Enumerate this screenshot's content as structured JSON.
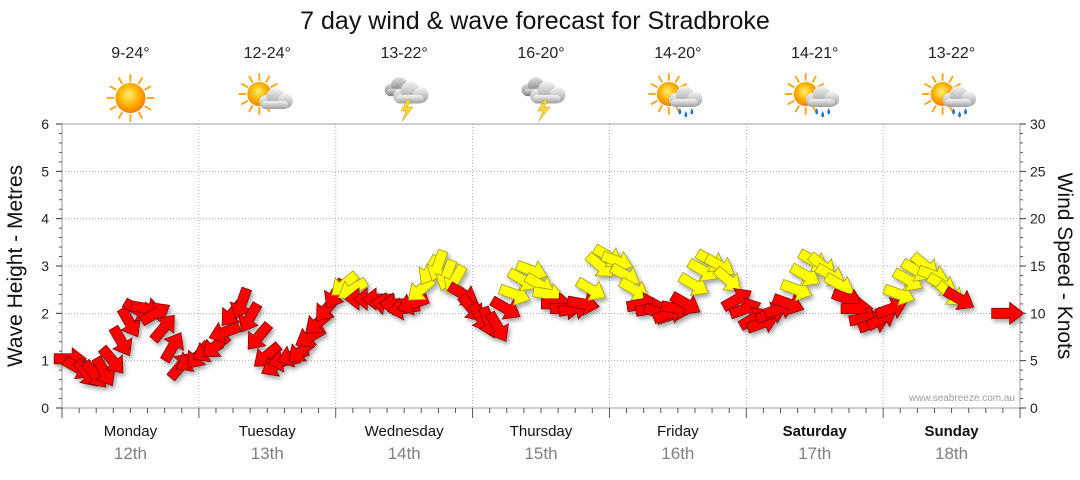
{
  "chart_data": {
    "type": "line",
    "title": "7 day wind & wave forecast for Stradbroke",
    "ylabel": "Wave Height - Metres",
    "y2label": "Wind Speed - Knots",
    "watermark": "www.seabreeze.com.au",
    "ylim": [
      0,
      6
    ],
    "y_ticks": [
      "0",
      "1",
      "2",
      "3",
      "4",
      "5",
      "6"
    ],
    "y2lim": [
      0,
      30
    ],
    "y2_ticks": [
      "0",
      "5",
      "10",
      "15",
      "20",
      "25",
      "30"
    ],
    "days": [
      {
        "name": "Monday",
        "date": "12th",
        "temp": "9-24°",
        "weather": "sunny",
        "bold": false
      },
      {
        "name": "Tuesday",
        "date": "13th",
        "temp": "12-24°",
        "weather": "partly-cloudy",
        "bold": false
      },
      {
        "name": "Wednesday",
        "date": "14th",
        "temp": "13-22°",
        "weather": "storm",
        "bold": false
      },
      {
        "name": "Thursday",
        "date": "15th",
        "temp": "16-20°",
        "weather": "storm",
        "bold": false
      },
      {
        "name": "Friday",
        "date": "16th",
        "temp": "14-20°",
        "weather": "partly-cloudy-rain",
        "bold": false
      },
      {
        "name": "Saturday",
        "date": "17th",
        "temp": "14-21°",
        "weather": "partly-cloudy-rain",
        "bold": true
      },
      {
        "name": "Sunday",
        "date": "18th",
        "temp": "13-22°",
        "weather": "partly-cloudy-rain",
        "bold": true
      }
    ],
    "wind_arrow_colors": {
      "light": "#ff0000",
      "strong": "#ffff00"
    },
    "wind_series": {
      "name": "Wind Speed",
      "unit": "knots",
      "points": [
        {
          "t": 0.0,
          "speed": 5.2,
          "dir": 270,
          "strong": false
        },
        {
          "t": 0.12,
          "speed": 4.2,
          "dir": 300,
          "strong": false
        },
        {
          "t": 0.25,
          "speed": 3.6,
          "dir": 320,
          "strong": false
        },
        {
          "t": 0.37,
          "speed": 3.5,
          "dir": 320,
          "strong": false
        },
        {
          "t": 0.5,
          "speed": 3.8,
          "dir": 330,
          "strong": false
        },
        {
          "t": 0.62,
          "speed": 5.0,
          "dir": 320,
          "strong": false
        },
        {
          "t": 0.75,
          "speed": 7.0,
          "dir": 330,
          "strong": false
        },
        {
          "t": 0.87,
          "speed": 9.0,
          "dir": 330,
          "strong": false
        },
        {
          "t": 1.0,
          "speed": 10.3,
          "dir": 300,
          "strong": false
        },
        {
          "t": 1.12,
          "speed": 10.5,
          "dir": 280,
          "strong": false
        },
        {
          "t": 1.25,
          "speed": 10.0,
          "dir": 240,
          "strong": false
        },
        {
          "t": 1.37,
          "speed": 8.5,
          "dir": 220,
          "strong": false
        },
        {
          "t": 1.5,
          "speed": 6.5,
          "dir": 210,
          "strong": false
        },
        {
          "t": 1.62,
          "speed": 4.5,
          "dir": 220,
          "strong": false
        },
        {
          "t": 1.75,
          "speed": 5.0,
          "dir": 60,
          "strong": false
        },
        {
          "t": 1.87,
          "speed": 5.5,
          "dir": 40,
          "strong": false
        },
        {
          "t": 2.0,
          "speed": 6.0,
          "dir": 60,
          "strong": false
        },
        {
          "t": 2.12,
          "speed": 6.5,
          "dir": 50,
          "strong": false
        },
        {
          "t": 2.25,
          "speed": 8.0,
          "dir": 70,
          "strong": false
        },
        {
          "t": 2.37,
          "speed": 10.0,
          "dir": 40,
          "strong": false
        },
        {
          "t": 2.5,
          "speed": 11.0,
          "dir": 20,
          "strong": false
        },
        {
          "t": 2.62,
          "speed": 9.5,
          "dir": 30,
          "strong": false
        },
        {
          "t": 2.75,
          "speed": 7.5,
          "dir": 40,
          "strong": false
        },
        {
          "t": 2.87,
          "speed": 5.5,
          "dir": 50,
          "strong": false
        },
        {
          "t": 3.0,
          "speed": 4.5,
          "dir": 60,
          "strong": false
        },
        {
          "t": 3.12,
          "speed": 5.0,
          "dir": 80,
          "strong": false
        },
        {
          "t": 3.25,
          "speed": 5.5,
          "dir": 70,
          "strong": false
        },
        {
          "t": 3.37,
          "speed": 6.0,
          "dir": 50,
          "strong": false
        },
        {
          "t": 3.5,
          "speed": 7.5,
          "dir": 60,
          "strong": false
        },
        {
          "t": 3.62,
          "speed": 9.0,
          "dir": 50,
          "strong": false
        },
        {
          "t": 3.75,
          "speed": 10.5,
          "dir": 40,
          "strong": false
        },
        {
          "t": 3.87,
          "speed": 12.0,
          "dir": 30,
          "strong": false
        },
        {
          "t": 4.0,
          "speed": 13.0,
          "dir": 50,
          "strong": true
        },
        {
          "t": 4.12,
          "speed": 12.5,
          "dir": 60,
          "strong": true
        },
        {
          "t": 4.25,
          "speed": 11.5,
          "dir": 90,
          "strong": false
        },
        {
          "t": 4.37,
          "speed": 11.5,
          "dir": 90,
          "strong": false
        },
        {
          "t": 4.5,
          "speed": 11.5,
          "dir": 90,
          "strong": false
        },
        {
          "t": 4.62,
          "speed": 11.0,
          "dir": 100,
          "strong": false
        },
        {
          "t": 4.75,
          "speed": 11.0,
          "dir": 90,
          "strong": false
        },
        {
          "t": 4.87,
          "speed": 10.5,
          "dir": 80,
          "strong": false
        },
        {
          "t": 5.0,
          "speed": 11.0,
          "dir": 70,
          "strong": false
        },
        {
          "t": 5.12,
          "speed": 12.5,
          "dir": 50,
          "strong": true
        },
        {
          "t": 5.25,
          "speed": 14.5,
          "dir": 30,
          "strong": true
        },
        {
          "t": 5.37,
          "speed": 15.0,
          "dir": 20,
          "strong": true
        },
        {
          "t": 5.5,
          "speed": 14.0,
          "dir": 20,
          "strong": true
        },
        {
          "t": 5.62,
          "speed": 13.5,
          "dir": 30,
          "strong": true
        },
        {
          "t": 5.75,
          "speed": 12.0,
          "dir": 300,
          "strong": false
        },
        {
          "t": 5.87,
          "speed": 10.5,
          "dir": 320,
          "strong": false
        },
        {
          "t": 6.0,
          "speed": 9.5,
          "dir": 330,
          "strong": false
        },
        {
          "t": 6.12,
          "speed": 9.0,
          "dir": 340,
          "strong": false
        },
        {
          "t": 6.25,
          "speed": 8.5,
          "dir": 330,
          "strong": false
        },
        {
          "t": 6.37,
          "speed": 10.5,
          "dir": 300,
          "strong": false
        },
        {
          "t": 6.5,
          "speed": 12.0,
          "dir": 290,
          "strong": true
        },
        {
          "t": 6.62,
          "speed": 13.5,
          "dir": 300,
          "strong": true
        },
        {
          "t": 6.75,
          "speed": 14.5,
          "dir": 290,
          "strong": true
        },
        {
          "t": 6.87,
          "speed": 13.0,
          "dir": 300,
          "strong": true
        },
        {
          "t": 7.0,
          "speed": 12.0,
          "dir": 280,
          "strong": true
        },
        {
          "t": 7.12,
          "speed": 11.0,
          "dir": 270,
          "strong": false
        },
        {
          "t": 7.25,
          "speed": 10.5,
          "dir": 270,
          "strong": false
        },
        {
          "t": 7.37,
          "speed": 10.5,
          "dir": 260,
          "strong": false
        },
        {
          "t": 7.5,
          "speed": 11.0,
          "dir": 280,
          "strong": false
        },
        {
          "t": 7.62,
          "speed": 12.5,
          "dir": 300,
          "strong": true
        },
        {
          "t": 7.75,
          "speed": 15.0,
          "dir": 310,
          "strong": true
        },
        {
          "t": 7.87,
          "speed": 16.0,
          "dir": 300,
          "strong": true
        },
        {
          "t": 8.0,
          "speed": 15.5,
          "dir": 290,
          "strong": true
        },
        {
          "t": 8.12,
          "speed": 14.0,
          "dir": 300,
          "strong": true
        },
        {
          "t": 8.25,
          "speed": 12.5,
          "dir": 300,
          "strong": true
        },
        {
          "t": 8.37,
          "speed": 11.0,
          "dir": 260,
          "strong": false
        },
        {
          "t": 8.5,
          "speed": 10.5,
          "dir": 260,
          "strong": false
        },
        {
          "t": 8.62,
          "speed": 10.0,
          "dir": 290,
          "strong": false
        },
        {
          "t": 8.75,
          "speed": 10.0,
          "dir": 250,
          "strong": false
        },
        {
          "t": 8.87,
          "speed": 10.5,
          "dir": 280,
          "strong": false
        },
        {
          "t": 9.0,
          "speed": 11.0,
          "dir": 300,
          "strong": false
        },
        {
          "t": 9.12,
          "speed": 13.0,
          "dir": 300,
          "strong": true
        },
        {
          "t": 9.25,
          "speed": 14.5,
          "dir": 300,
          "strong": true
        },
        {
          "t": 9.37,
          "speed": 15.5,
          "dir": 300,
          "strong": true
        },
        {
          "t": 9.5,
          "speed": 15.0,
          "dir": 300,
          "strong": true
        },
        {
          "t": 9.62,
          "speed": 13.5,
          "dir": 310,
          "strong": true
        },
        {
          "t": 9.75,
          "speed": 11.5,
          "dir": 240,
          "strong": false
        },
        {
          "t": 9.87,
          "speed": 10.5,
          "dir": 250,
          "strong": false
        },
        {
          "t": 10.0,
          "speed": 9.5,
          "dir": 240,
          "strong": false
        },
        {
          "t": 10.12,
          "speed": 9.0,
          "dir": 250,
          "strong": false
        },
        {
          "t": 10.25,
          "speed": 10.0,
          "dir": 250,
          "strong": false
        },
        {
          "t": 10.37,
          "speed": 10.5,
          "dir": 250,
          "strong": false
        },
        {
          "t": 10.5,
          "speed": 11.0,
          "dir": 290,
          "strong": false
        },
        {
          "t": 10.62,
          "speed": 12.5,
          "dir": 290,
          "strong": true
        },
        {
          "t": 10.75,
          "speed": 14.0,
          "dir": 300,
          "strong": true
        },
        {
          "t": 10.87,
          "speed": 15.5,
          "dir": 300,
          "strong": true
        },
        {
          "t": 11.0,
          "speed": 15.0,
          "dir": 310,
          "strong": true
        },
        {
          "t": 11.12,
          "speed": 14.0,
          "dir": 300,
          "strong": true
        },
        {
          "t": 11.25,
          "speed": 13.0,
          "dir": 300,
          "strong": true
        },
        {
          "t": 11.37,
          "speed": 11.5,
          "dir": 290,
          "strong": false
        },
        {
          "t": 11.5,
          "speed": 10.5,
          "dir": 270,
          "strong": false
        },
        {
          "t": 11.62,
          "speed": 9.5,
          "dir": 260,
          "strong": false
        },
        {
          "t": 11.75,
          "speed": 9.0,
          "dir": 250,
          "strong": false
        },
        {
          "t": 11.87,
          "speed": 9.5,
          "dir": 240,
          "strong": false
        },
        {
          "t": 12.0,
          "speed": 10.5,
          "dir": 250,
          "strong": false
        },
        {
          "t": 12.12,
          "speed": 12.0,
          "dir": 290,
          "strong": true
        },
        {
          "t": 12.25,
          "speed": 13.5,
          "dir": 300,
          "strong": true
        },
        {
          "t": 12.37,
          "speed": 14.5,
          "dir": 300,
          "strong": true
        },
        {
          "t": 12.5,
          "speed": 15.0,
          "dir": 310,
          "strong": true
        },
        {
          "t": 12.62,
          "speed": 14.0,
          "dir": 290,
          "strong": true
        },
        {
          "t": 12.75,
          "speed": 13.0,
          "dir": 300,
          "strong": true
        },
        {
          "t": 12.87,
          "speed": 12.0,
          "dir": 310,
          "strong": true
        },
        {
          "t": 13.0,
          "speed": 11.5,
          "dir": 300,
          "strong": false
        },
        {
          "t": 13.7,
          "speed": 10.0,
          "dir": 270,
          "strong": false
        }
      ]
    }
  }
}
